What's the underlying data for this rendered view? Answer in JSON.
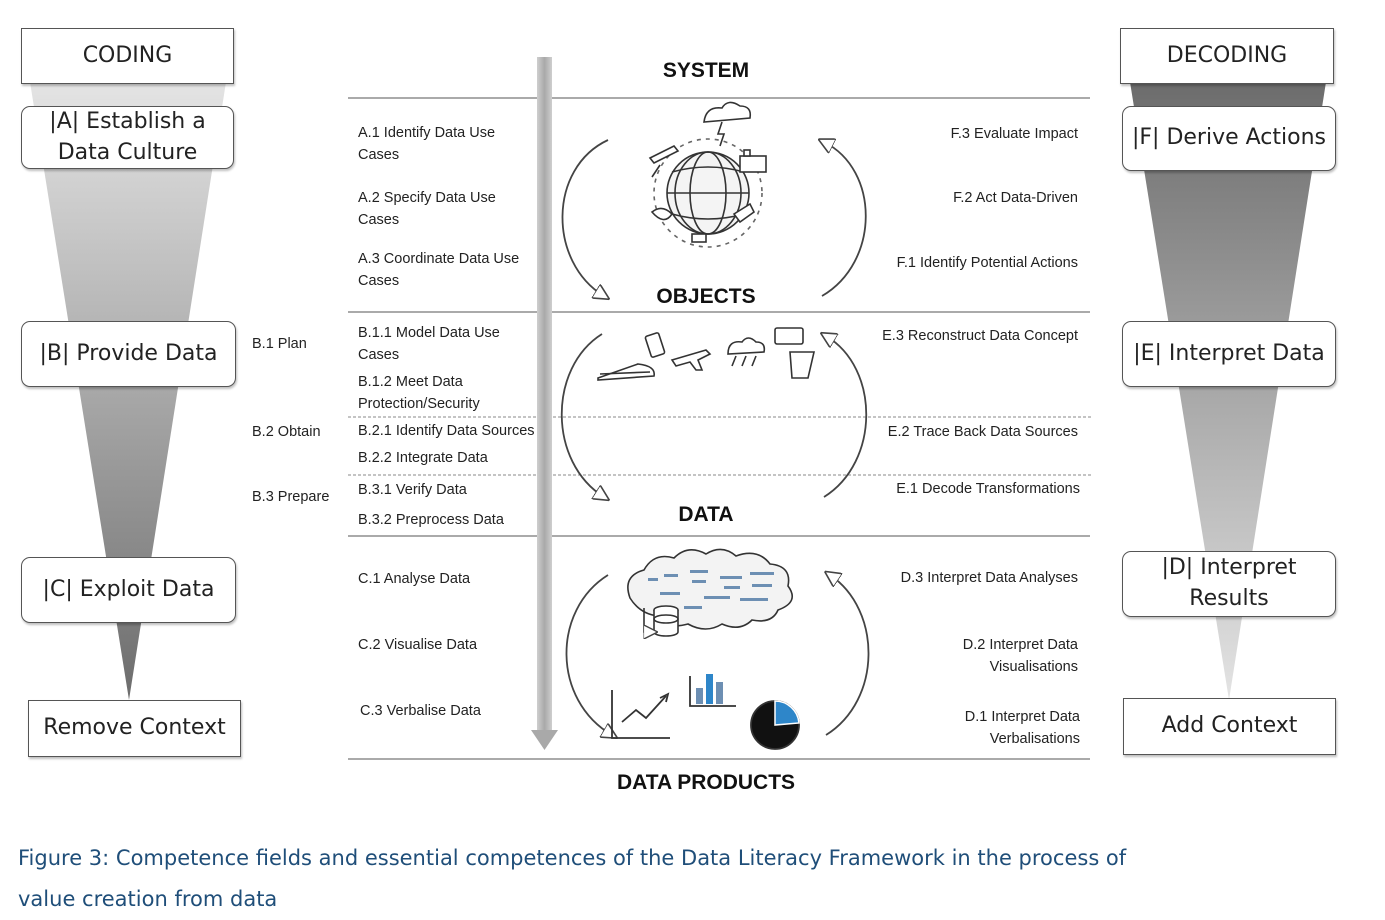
{
  "figure": {
    "caption": "Figure 3: Competence fields and essential competences of the Data Literacy Framework in the process of value creation from data"
  },
  "left": {
    "header": "CODING",
    "fields": {
      "A": "|A| Establish a Data Culture",
      "B": "|B| Provide Data",
      "C": "|C| Exploit Data"
    },
    "bottom": "Remove Context",
    "b_groups": [
      "B.1 Plan",
      "B.2 Obtain",
      "B.3 Prepare"
    ]
  },
  "right": {
    "header": "DECODING",
    "fields": {
      "F": "|F| Derive Actions",
      "E": "|E| Interpret Data",
      "D": "|D| Interpret Results"
    },
    "bottom": "Add Context"
  },
  "stages": {
    "system": "SYSTEM",
    "objects": "OBJECTS",
    "data": "DATA",
    "data_products": "DATA PRODUCTS"
  },
  "competences": {
    "a1": "A.1 Identify Data Use Cases",
    "a2": "A.2 Specify Data Use Cases",
    "a3": "A.3 Coordinate Data Use Cases",
    "b11": "B.1.1 Model Data Use Cases",
    "b12": "B.1.2 Meet Data Protection/Security",
    "b21": "B.2.1 Identify Data Sources",
    "b22": "B.2.2 Integrate Data",
    "b31": "B.3.1 Verify Data",
    "b32": "B.3.2 Preprocess Data",
    "c1": "C.1 Analyse Data",
    "c2": "C.2 Visualise Data",
    "c3": "C.3 Verbalise Data",
    "f3": "F.3 Evaluate Impact",
    "f2": "F.2 Act Data-Driven",
    "f1": "F.1 Identify Potential Actions",
    "e3": "E.3 Reconstruct Data Concept",
    "e2": "E.2 Trace Back Data Sources",
    "e1": "E.1 Decode Transformations",
    "d3": "D.3 Interpret Data Analyses",
    "d2": "D.2 Interpret Data Visualisations",
    "d1": "D.1 Interpret Data Verbalisations"
  },
  "colors": {
    "caption": "#1f4e79",
    "funnel_dark": "#6f6f6f",
    "funnel_light": "#e2e2e2",
    "process_arrow": "#b9b9b9",
    "pie_accent": "#2e86c9"
  }
}
